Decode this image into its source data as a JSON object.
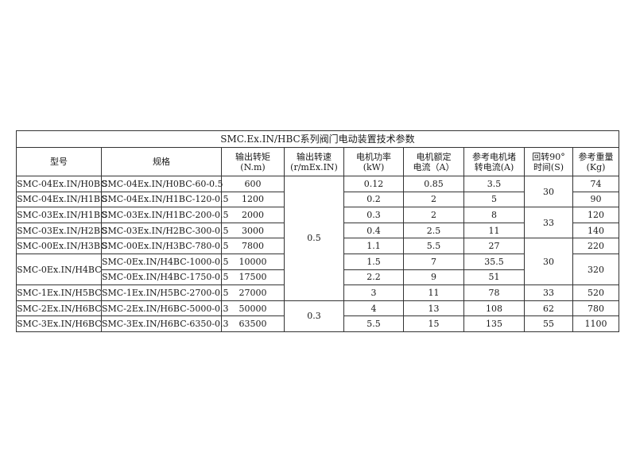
{
  "title": "SMC.Ex.IN/HBC系列阀门电动装置技术参数",
  "headers": [
    [
      "型号"
    ],
    [
      "规格"
    ],
    [
      "输出转矩",
      "(N.m)"
    ],
    [
      "输出转速",
      "(r/mEx.IN)"
    ],
    [
      "电机功率",
      "(kW)"
    ],
    [
      "电机额定",
      "电流（A）"
    ],
    [
      "参考电机堵",
      "转电流(A)"
    ],
    [
      "回转90°",
      "时间(S)"
    ],
    [
      "参考重量",
      "(Kg)"
    ]
  ],
  "rows": [
    [
      {
        "v": "SMC-04Ex.IN/H0BC"
      },
      {
        "v": "SMC-04Ex.IN/H0BC-60-0.5"
      },
      {
        "v": "600"
      },
      {
        "v": "0.5",
        "span": 8
      },
      {
        "v": "0.12"
      },
      {
        "v": "0.85"
      },
      {
        "v": "3.5"
      },
      {
        "v": "30",
        "span": 2
      },
      {
        "v": "74"
      }
    ],
    [
      {
        "v": "SMC-04Ex.IN/H1BC"
      },
      {
        "v": "SMC-04Ex.IN/H1BC-120-0.5"
      },
      {
        "v": "1200"
      },
      null,
      {
        "v": "0.2"
      },
      {
        "v": "2"
      },
      {
        "v": "5"
      },
      null,
      {
        "v": "90"
      }
    ],
    [
      {
        "v": "SMC-03Ex.IN/H1BC"
      },
      {
        "v": "SMC-03Ex.IN/H1BC-200-0.5"
      },
      {
        "v": "2000"
      },
      null,
      {
        "v": "0.3"
      },
      {
        "v": "2"
      },
      {
        "v": "8"
      },
      {
        "v": "33",
        "span": 2
      },
      {
        "v": "120"
      }
    ],
    [
      {
        "v": "SMC-03Ex.IN/H2BC"
      },
      {
        "v": "SMC-03Ex.IN/H2BC-300-0.5"
      },
      {
        "v": "3000"
      },
      null,
      {
        "v": "0.4"
      },
      {
        "v": "2.5"
      },
      {
        "v": "11"
      },
      null,
      {
        "v": "140"
      }
    ],
    [
      {
        "v": "SMC-00Ex.IN/H3BC"
      },
      {
        "v": "SMC-00Ex.IN/H3BC-780-0.5"
      },
      {
        "v": "7800"
      },
      null,
      {
        "v": "1.1"
      },
      {
        "v": "5.5"
      },
      {
        "v": "27"
      },
      {
        "v": "30",
        "span": 3
      },
      {
        "v": "220"
      }
    ],
    [
      {
        "v": "SMC-0Ex.IN/H4BC",
        "span": 2
      },
      {
        "v": "SMC-0Ex.IN/H4BC-1000-0.5"
      },
      {
        "v": "10000"
      },
      null,
      {
        "v": "1.5"
      },
      {
        "v": "7"
      },
      {
        "v": "35.5"
      },
      null,
      {
        "v": "320",
        "span": 2
      }
    ],
    [
      null,
      {
        "v": "SMC-0Ex.IN/H4BC-1750-0.5"
      },
      {
        "v": "17500"
      },
      null,
      {
        "v": "2.2"
      },
      {
        "v": "9"
      },
      {
        "v": "51"
      },
      null,
      null
    ],
    [
      {
        "v": "SMC-1Ex.IN/H5BC"
      },
      {
        "v": "SMC-1Ex.IN/H5BC-2700-0.5"
      },
      {
        "v": "27000"
      },
      null,
      {
        "v": "3"
      },
      {
        "v": "11"
      },
      {
        "v": "78"
      },
      {
        "v": "33"
      },
      {
        "v": "520"
      }
    ],
    [
      {
        "v": "SMC-2Ex.IN/H6BC"
      },
      {
        "v": "SMC-2Ex.IN/H6BC-5000-0.3"
      },
      {
        "v": "50000"
      },
      {
        "v": "0.3",
        "span": 2
      },
      {
        "v": "4"
      },
      {
        "v": "13"
      },
      {
        "v": "108"
      },
      {
        "v": "62"
      },
      {
        "v": "780"
      }
    ],
    [
      {
        "v": "SMC-3Ex.IN/H6BC"
      },
      {
        "v": "SMC-3Ex.IN/H6BC-6350-0.3"
      },
      {
        "v": "63500"
      },
      null,
      {
        "v": "5.5"
      },
      {
        "v": "15"
      },
      {
        "v": "135"
      },
      {
        "v": "55"
      },
      {
        "v": "1100"
      }
    ]
  ]
}
